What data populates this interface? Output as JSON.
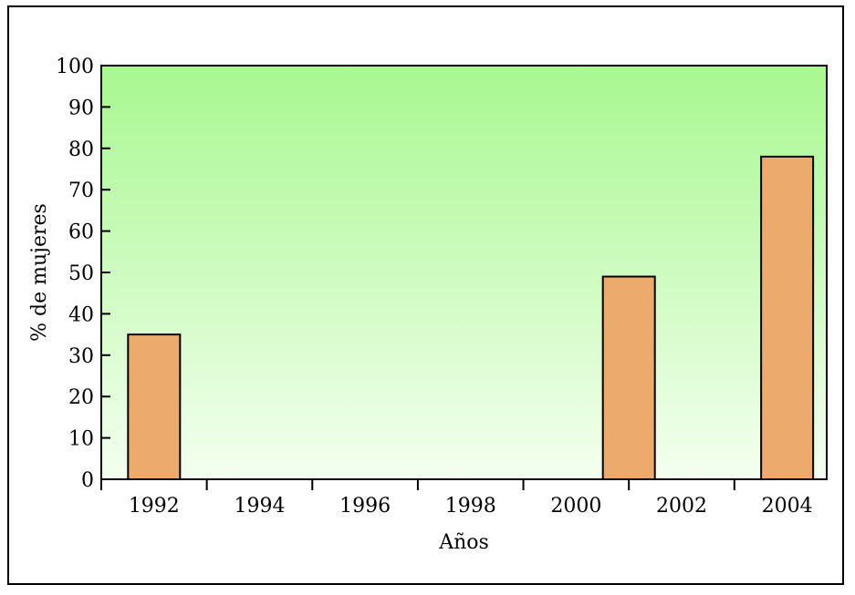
{
  "chart_data": {
    "type": "bar",
    "title": "",
    "xlabel": "Años",
    "ylabel": "% de mujeres",
    "ylim": [
      0,
      100
    ],
    "xlim": [
      1991.0,
      2004.75
    ],
    "y_ticks": [
      0,
      10,
      20,
      30,
      40,
      50,
      60,
      70,
      80,
      90,
      100
    ],
    "x_ticks": [
      1992,
      1994,
      1996,
      1998,
      2000,
      2002,
      2004
    ],
    "x": [
      1992,
      2001,
      2004
    ],
    "values": [
      35,
      49,
      78
    ],
    "bar_color": "#ECAA6C",
    "plot_background": [
      "#A8F890",
      "#F4FFF0"
    ],
    "grid": false
  }
}
